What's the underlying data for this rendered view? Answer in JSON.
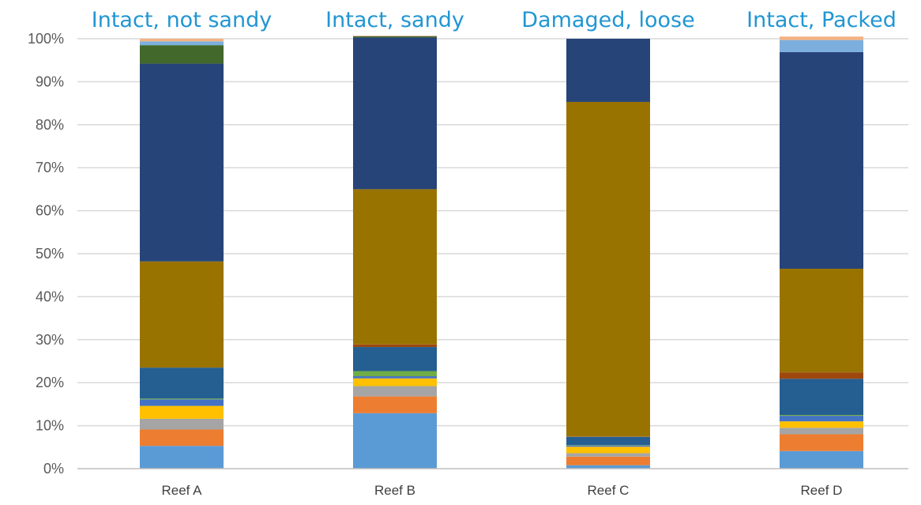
{
  "chart_data": {
    "type": "bar",
    "stacked": true,
    "percent_stacked": true,
    "categories": [
      "Reef A",
      "Reef B",
      "Reef C",
      "Reef D"
    ],
    "annotations": [
      "Intact, not sandy",
      "Intact, sandy",
      "Damaged, loose",
      "Intact, Packed"
    ],
    "annotation_color": "#2196D3",
    "y_ticks": [
      "0%",
      "10%",
      "20%",
      "30%",
      "40%",
      "50%",
      "60%",
      "70%",
      "80%",
      "90%",
      "100%"
    ],
    "ylim": [
      0,
      100
    ],
    "grid": true,
    "legend": "none",
    "series": [
      {
        "color": "#5B9BD5",
        "values": [
          5.3,
          12.9,
          0.8,
          4.1
        ]
      },
      {
        "color": "#ED7D31",
        "values": [
          3.8,
          3.9,
          2.0,
          3.9
        ]
      },
      {
        "color": "#A5A5A5",
        "values": [
          2.5,
          2.4,
          0.8,
          1.5
        ]
      },
      {
        "color": "#FFC000",
        "values": [
          3.0,
          1.8,
          1.5,
          1.5
        ]
      },
      {
        "color": "#4472C4",
        "values": [
          1.5,
          0.5,
          0.3,
          1.3
        ]
      },
      {
        "color": "#70AD47",
        "values": [
          0.2,
          1.2,
          0.1,
          0.2
        ]
      },
      {
        "color": "#255E91",
        "values": [
          7.2,
          5.6,
          1.9,
          8.4
        ]
      },
      {
        "color": "#9E480E",
        "values": [
          0.0,
          0.6,
          0.1,
          1.5
        ]
      },
      {
        "color": "#997300",
        "values": [
          24.7,
          36.1,
          77.8,
          24.1
        ]
      },
      {
        "color": "#264478",
        "values": [
          46.0,
          35.3,
          14.7,
          50.4
        ]
      },
      {
        "color": "#43682B",
        "values": [
          4.3,
          0.3,
          0.0,
          0.0
        ]
      },
      {
        "color": "#7CAFDD",
        "values": [
          0.9,
          0.0,
          0.0,
          2.8
        ]
      },
      {
        "color": "#F4B183",
        "values": [
          0.6,
          0.1,
          0.0,
          0.8
        ]
      }
    ]
  }
}
